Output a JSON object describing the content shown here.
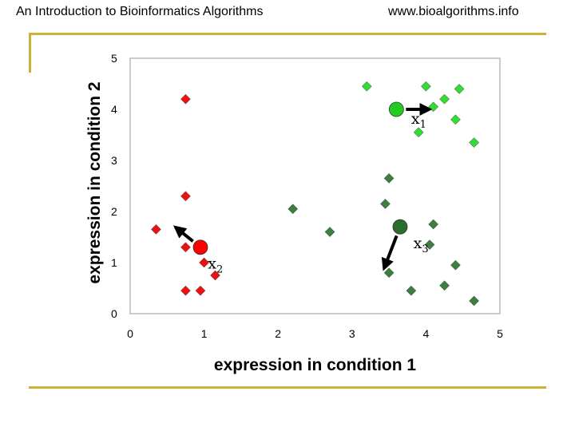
{
  "header": {
    "left": "An Introduction to Bioinformatics Algorithms",
    "right": "www.bioalgorithms.info"
  },
  "colors": {
    "cluster1": "#33dd33",
    "cluster2": "#ee1111",
    "cluster3": "#3d7f3d",
    "centroid1": "#22cc22",
    "centroid2": "#ff0000",
    "centroid3": "#2a6e2a",
    "rule": "#c9b13a",
    "frame": "#999999",
    "arrow": "#000000"
  },
  "chart_data": {
    "type": "scatter",
    "xlabel": "expression in condition 1",
    "ylabel": "expression in condition 2",
    "xlim": [
      0,
      5
    ],
    "ylim": [
      0,
      5
    ],
    "xticks": [
      "0",
      "1",
      "2",
      "3",
      "4",
      "5"
    ],
    "yticks": [
      "0",
      "1",
      "2",
      "3",
      "4",
      "5"
    ],
    "grid": false,
    "series": [
      {
        "color_key": "cluster1",
        "marker": "diamond",
        "points": [
          [
            3.2,
            4.45
          ],
          [
            4.0,
            4.45
          ],
          [
            4.45,
            4.4
          ],
          [
            4.25,
            4.2
          ],
          [
            4.1,
            4.05
          ],
          [
            4.4,
            3.8
          ],
          [
            3.9,
            3.55
          ],
          [
            4.65,
            3.35
          ]
        ]
      },
      {
        "color_key": "cluster2",
        "marker": "diamond",
        "points": [
          [
            0.75,
            4.2
          ],
          [
            0.75,
            2.3
          ],
          [
            0.35,
            1.65
          ],
          [
            0.75,
            1.3
          ],
          [
            0.75,
            0.45
          ],
          [
            0.95,
            0.45
          ],
          [
            1.0,
            1.0
          ],
          [
            1.15,
            0.75
          ]
        ]
      },
      {
        "color_key": "cluster3",
        "marker": "diamond",
        "points": [
          [
            3.5,
            2.65
          ],
          [
            3.45,
            2.15
          ],
          [
            2.2,
            2.05
          ],
          [
            2.7,
            1.6
          ],
          [
            4.1,
            1.75
          ],
          [
            4.05,
            1.35
          ],
          [
            4.4,
            0.95
          ],
          [
            3.5,
            0.8
          ],
          [
            3.8,
            0.45
          ],
          [
            4.25,
            0.55
          ],
          [
            4.65,
            0.25
          ]
        ]
      }
    ],
    "centroids": [
      {
        "color_key": "centroid1",
        "x": 3.6,
        "y": 4.0,
        "arrow_to": [
          4.0,
          4.0
        ],
        "label": "x",
        "sub": "1",
        "label_at": [
          3.8,
          3.72
        ]
      },
      {
        "color_key": "centroid2",
        "x": 0.95,
        "y": 1.3,
        "arrow_to": [
          0.65,
          1.65
        ],
        "label": "x",
        "sub": "2",
        "label_at": [
          1.05,
          0.88
        ]
      },
      {
        "color_key": "centroid3",
        "x": 3.65,
        "y": 1.7,
        "arrow_to": [
          3.45,
          0.95
        ],
        "label": "x",
        "sub": "3",
        "label_at": [
          3.83,
          1.28
        ]
      }
    ]
  }
}
